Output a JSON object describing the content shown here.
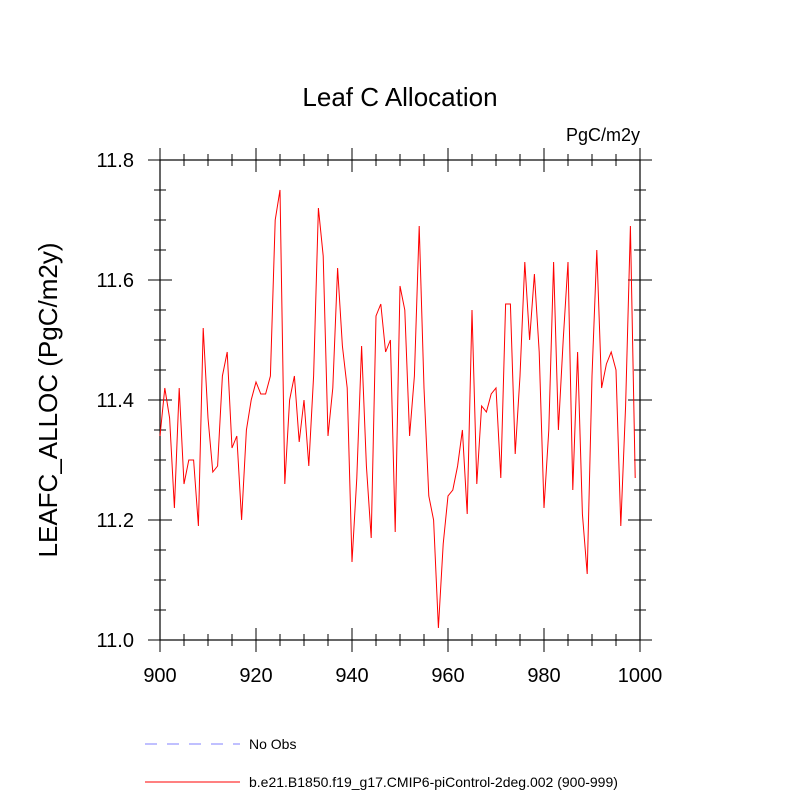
{
  "chart_data": {
    "type": "line",
    "title": "Leaf C Allocation",
    "units_label": "PgC/m2y",
    "xlabel": "",
    "ylabel": "LEAFC_ALLOC  (PgC/m2y)",
    "xlim": [
      900,
      1000
    ],
    "ylim": [
      11.0,
      11.8
    ],
    "xticks": [
      900,
      920,
      940,
      960,
      980,
      1000
    ],
    "xtick_labels": [
      "900",
      "920",
      "940",
      "960",
      "980",
      "1000"
    ],
    "yticks": [
      11.0,
      11.2,
      11.4,
      11.6,
      11.8
    ],
    "ytick_labels": [
      "11.0",
      "11.2",
      "11.4",
      "11.6",
      "11.8"
    ],
    "grid": false,
    "legend_placement": "bottom-left, below plot",
    "series": [
      {
        "name": "No Obs",
        "color": "#8080ff",
        "dash": true,
        "x": [],
        "values": []
      },
      {
        "name": "b.e21.B1850.f19_g17.CMIP6-piControl-2deg.002 (900-999)",
        "color": "#ff0000",
        "dash": false,
        "x_start": 900,
        "values": [
          11.34,
          11.42,
          11.37,
          11.22,
          11.42,
          11.26,
          11.3,
          11.3,
          11.19,
          11.52,
          11.37,
          11.28,
          11.29,
          11.44,
          11.48,
          11.32,
          11.34,
          11.2,
          11.35,
          11.4,
          11.43,
          11.41,
          11.41,
          11.44,
          11.7,
          11.75,
          11.26,
          11.4,
          11.44,
          11.33,
          11.4,
          11.29,
          11.44,
          11.72,
          11.64,
          11.34,
          11.42,
          11.62,
          11.49,
          11.42,
          11.13,
          11.27,
          11.49,
          11.29,
          11.17,
          11.54,
          11.56,
          11.48,
          11.5,
          11.18,
          11.59,
          11.55,
          11.34,
          11.44,
          11.69,
          11.42,
          11.24,
          11.2,
          11.02,
          11.16,
          11.24,
          11.25,
          11.29,
          11.35,
          11.21,
          11.55,
          11.26,
          11.39,
          11.38,
          11.41,
          11.42,
          11.27,
          11.56,
          11.56,
          11.31,
          11.44,
          11.63,
          11.5,
          11.61,
          11.48,
          11.22,
          11.35,
          11.63,
          11.35,
          11.5,
          11.63,
          11.25,
          11.48,
          11.21,
          11.11,
          11.44,
          11.65,
          11.42,
          11.46,
          11.48,
          11.45,
          11.19,
          11.39,
          11.69,
          11.27
        ]
      }
    ]
  }
}
